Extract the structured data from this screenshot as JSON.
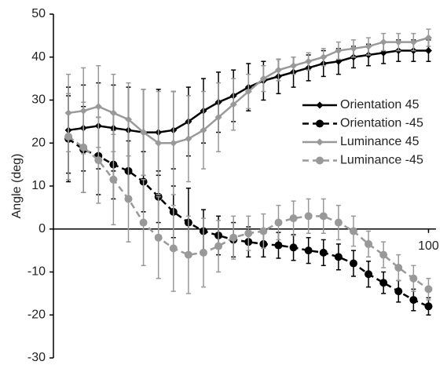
{
  "chart_data": {
    "type": "line",
    "y_label": "Angle (deg)",
    "x": [
      4,
      8,
      12,
      16,
      20,
      24,
      28,
      32,
      36,
      40,
      44,
      48,
      52,
      56,
      60,
      64,
      68,
      72,
      76,
      80,
      84,
      88,
      92,
      96,
      100
    ],
    "xlim": [
      0,
      102
    ],
    "xticks": [
      100
    ],
    "ylim": [
      -30,
      50
    ],
    "yticks": [
      -30,
      -20,
      -10,
      0,
      10,
      20,
      30,
      40,
      50
    ],
    "legend": "right",
    "series": [
      {
        "name": "Orientation 45",
        "color": "#000000",
        "dashed": false,
        "marker": "diamond",
        "values": [
          23,
          23.5,
          24,
          23.5,
          23,
          22.5,
          22.5,
          23,
          25,
          27.5,
          29.5,
          31,
          33,
          34.5,
          35.5,
          36.5,
          37.5,
          38.5,
          39,
          40,
          40.5,
          41,
          41.5,
          41.5,
          41.5
        ],
        "errors": [
          10,
          10,
          10,
          10,
          10,
          10,
          10,
          9,
          8,
          7.5,
          7,
          6,
          5.5,
          4.5,
          4,
          3.5,
          3,
          3,
          3,
          2.5,
          2.5,
          2.5,
          2.5,
          2.5,
          2.5
        ]
      },
      {
        "name": "Orientation -45",
        "color": "#000000",
        "dashed": true,
        "marker": "circle",
        "values": [
          21,
          18.5,
          17,
          15,
          13.5,
          11,
          7.5,
          4,
          1.5,
          -0.5,
          -1.5,
          -2.5,
          -3,
          -3.5,
          -3.8,
          -4.3,
          -5,
          -5.5,
          -6.5,
          -8,
          -10.5,
          -12.5,
          -14.5,
          -16.5,
          -18
        ],
        "errors": [
          10,
          10,
          9,
          8,
          7,
          7,
          6,
          6,
          8,
          5,
          4.5,
          4,
          3.5,
          3,
          3,
          3,
          3,
          3,
          3,
          3,
          3,
          2.5,
          2.5,
          2.5,
          2
        ]
      },
      {
        "name": "Luminance 45",
        "color": "#999999",
        "dashed": false,
        "marker": "diamond",
        "values": [
          27,
          27.5,
          28.5,
          27,
          25.5,
          22.5,
          20,
          20,
          21,
          23,
          26,
          29,
          32,
          35,
          37,
          38,
          39,
          40,
          41.5,
          42,
          42.5,
          43.5,
          43.5,
          43.5,
          44.5
        ],
        "errors": [
          9,
          10,
          9.5,
          9,
          8.5,
          10,
          12,
          12,
          10,
          9,
          8,
          6,
          4,
          3,
          2.5,
          2,
          2,
          2,
          2,
          2,
          2,
          2,
          2,
          2,
          2
        ]
      },
      {
        "name": "Luminance -45",
        "color": "#999999",
        "dashed": true,
        "marker": "circle",
        "values": [
          21.5,
          19,
          16,
          11.5,
          7,
          1.5,
          -2,
          -4.5,
          -6,
          -5.5,
          -4,
          -2,
          -1,
          -0.5,
          1.5,
          2.5,
          3,
          3,
          1.5,
          -0.5,
          -3.5,
          -6,
          -9,
          -11.5,
          -14
        ],
        "errors": [
          10,
          10.5,
          10,
          10.5,
          10,
          10,
          9.5,
          10,
          9,
          8,
          6,
          5,
          4,
          4,
          4,
          4,
          4,
          4,
          4,
          3.5,
          3,
          3,
          3,
          3,
          2.5
        ]
      }
    ]
  }
}
